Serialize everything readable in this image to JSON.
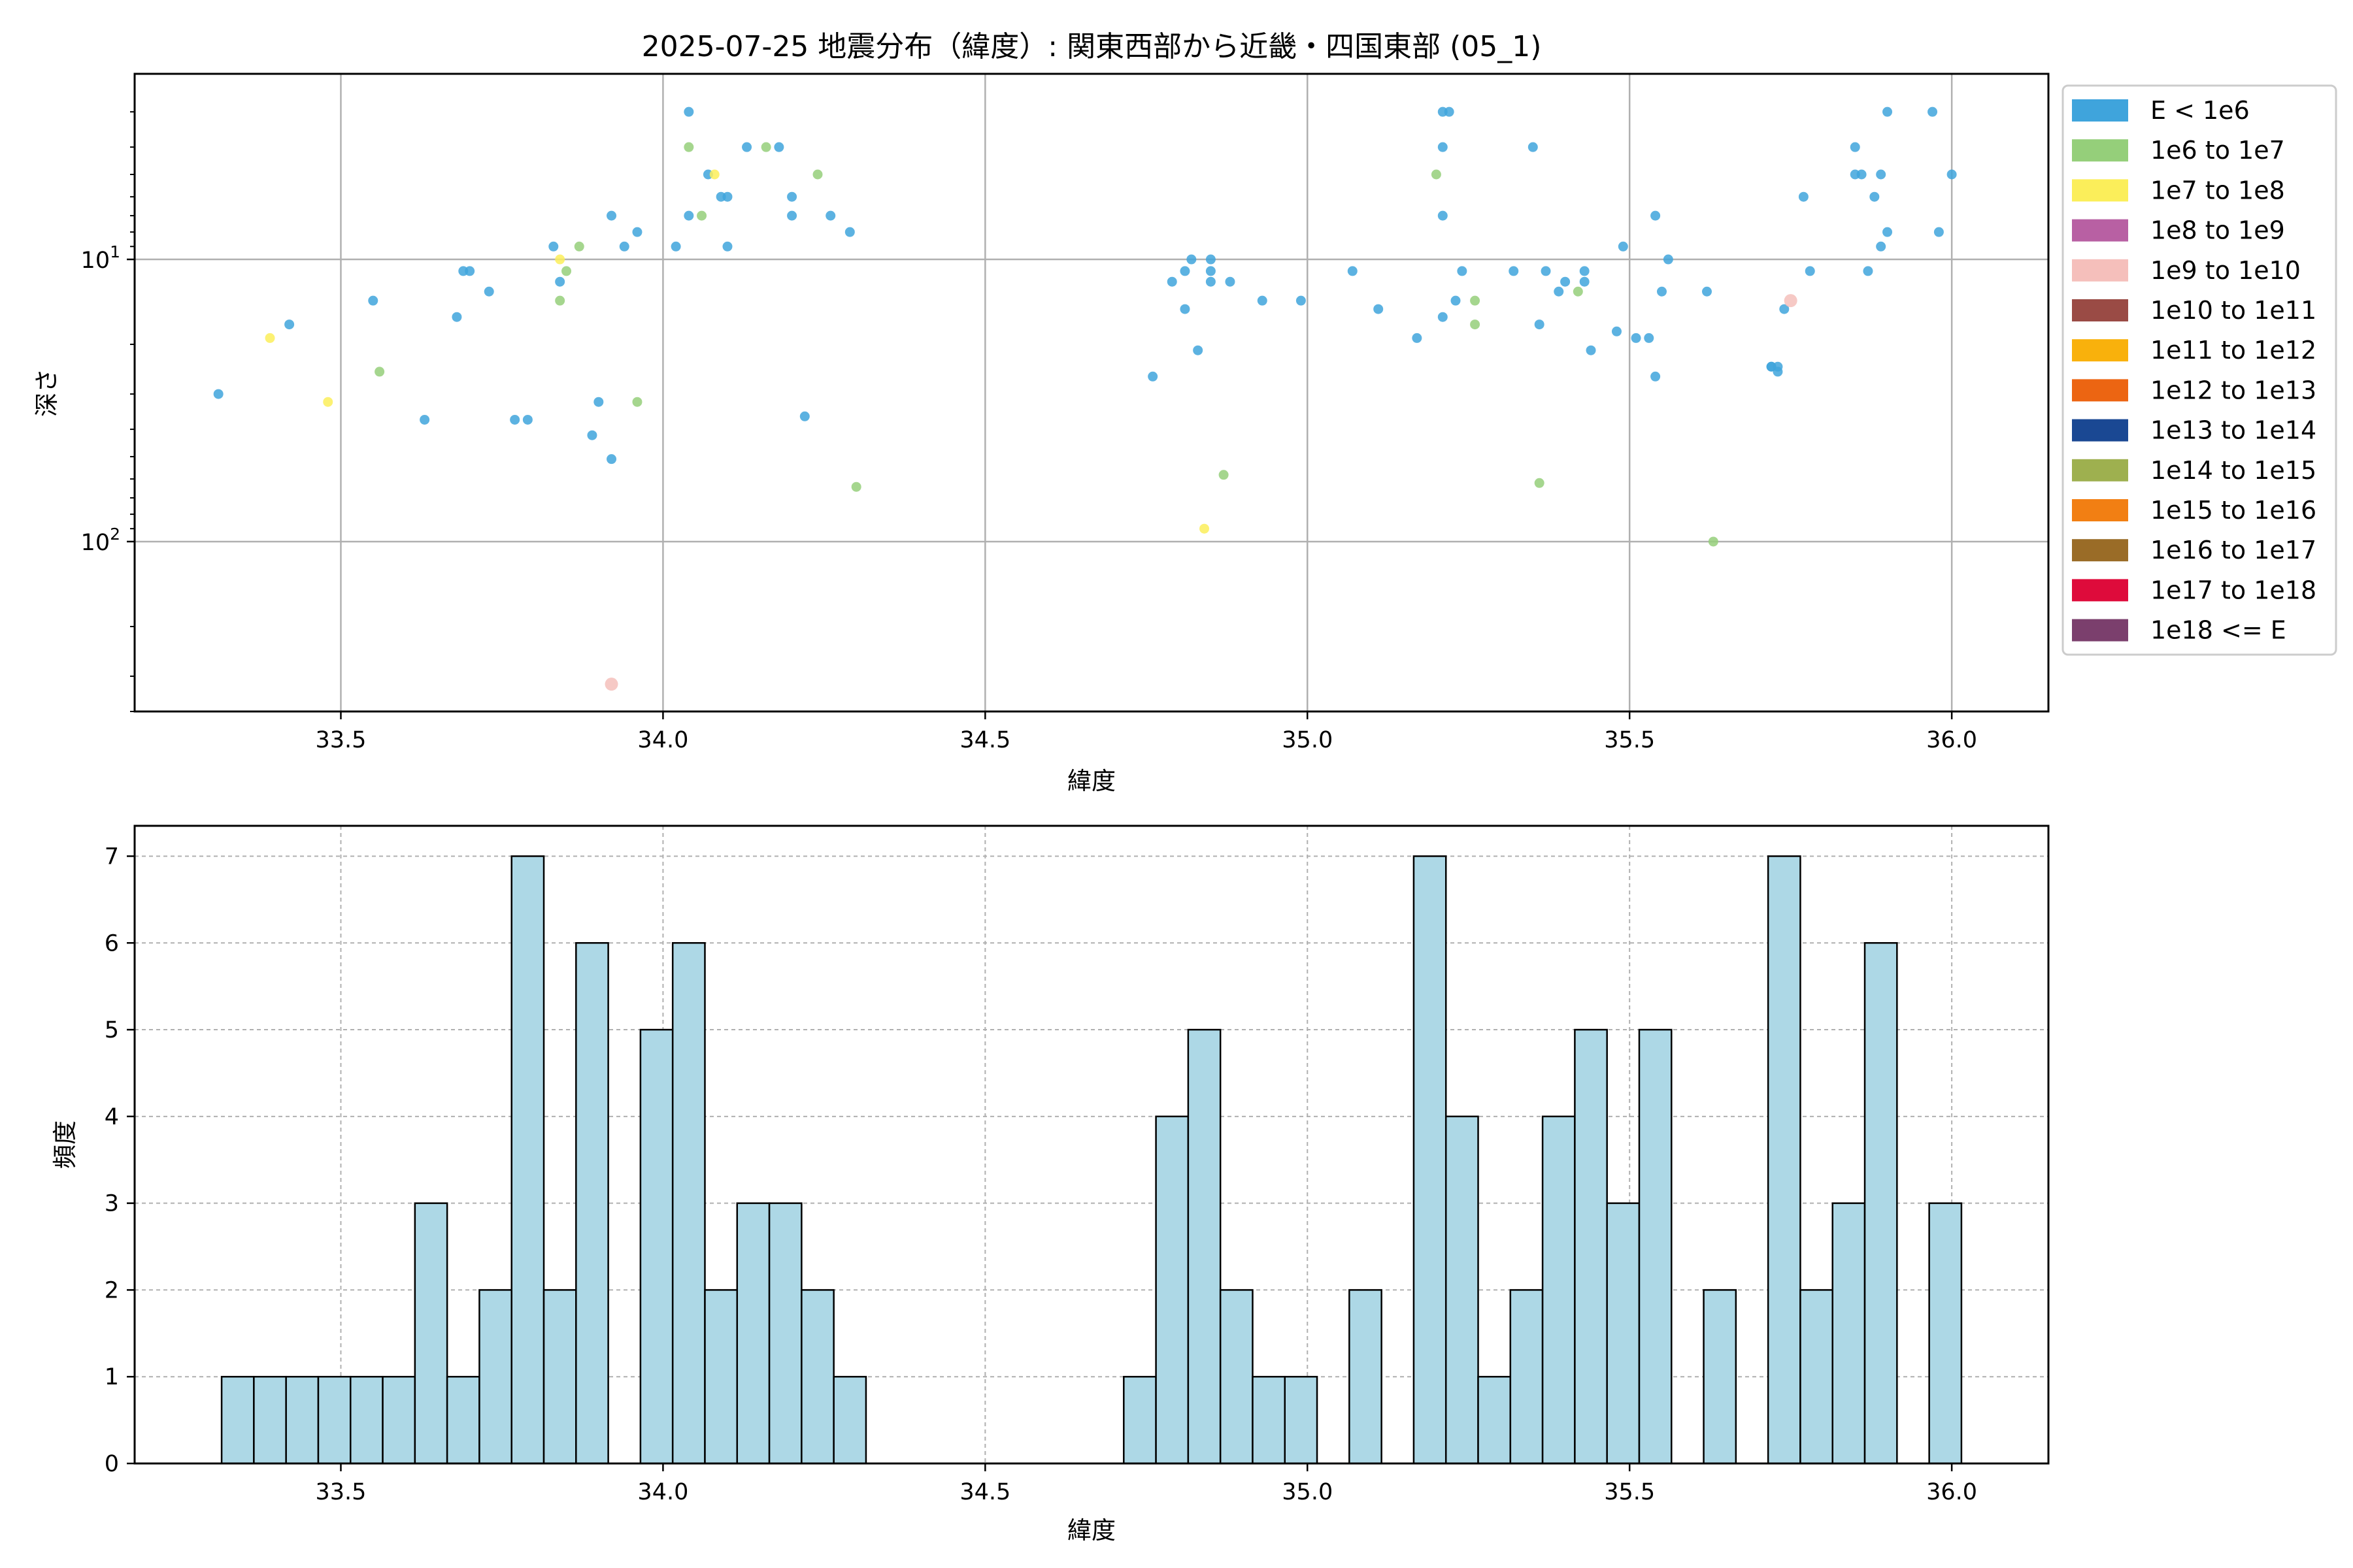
{
  "chart_data": [
    {
      "type": "scatter",
      "title": "2025-07-25 地震分布（緯度）: 関東西部から近畿・四国東部 (05_1)",
      "xlabel": "緯度",
      "ylabel": "深さ",
      "xlim": [
        33.18,
        36.15
      ],
      "ylim": [
        400,
        2.2
      ],
      "y_scale": "log",
      "y_inverted": true,
      "grid": true,
      "x_ticks": [
        {
          "v": 33.5,
          "label": "33.5"
        },
        {
          "v": 34.0,
          "label": "34.0"
        },
        {
          "v": 34.5,
          "label": "34.5"
        },
        {
          "v": 35.0,
          "label": "35.0"
        },
        {
          "v": 35.5,
          "label": "35.5"
        },
        {
          "v": 36.0,
          "label": "36.0"
        }
      ],
      "y_ticks": [
        {
          "v": 10,
          "base": "10",
          "exp": "1"
        },
        {
          "v": 100,
          "base": "10",
          "exp": "2"
        }
      ],
      "legend_position": "outside-right",
      "legend": [
        {
          "label": "E < 1e6",
          "color": "#3fa4dc"
        },
        {
          "label": "1e6 to 1e7",
          "color": "#95cf7a"
        },
        {
          "label": "1e7 to 1e8",
          "color": "#fbee5a"
        },
        {
          "label": "1e8 to 1e9",
          "color": "#b860a3"
        },
        {
          "label": "1e9 to 1e10",
          "color": "#f5bfbb"
        },
        {
          "label": "1e10 to 1e11",
          "color": "#9a4b45"
        },
        {
          "label": "1e11 to 1e12",
          "color": "#f9b10c"
        },
        {
          "label": "1e12 to 1e13",
          "color": "#ec6512"
        },
        {
          "label": "1e13 to 1e14",
          "color": "#1a4893"
        },
        {
          "label": "1e14 to 1e15",
          "color": "#9eb04f"
        },
        {
          "label": "1e15 to 1e16",
          "color": "#f27f13"
        },
        {
          "label": "1e16 to 1e17",
          "color": "#9a6c27"
        },
        {
          "label": "1e17 to 1e18",
          "color": "#de0b3b"
        },
        {
          "label": "1e18 <= E",
          "color": "#7b3f6d"
        }
      ],
      "points": [
        {
          "x": 33.31,
          "y": 30,
          "c": 0
        },
        {
          "x": 33.39,
          "y": 19,
          "c": 2
        },
        {
          "x": 33.42,
          "y": 17,
          "c": 0
        },
        {
          "x": 33.48,
          "y": 32,
          "c": 2
        },
        {
          "x": 33.55,
          "y": 14,
          "c": 0
        },
        {
          "x": 33.56,
          "y": 25,
          "c": 1
        },
        {
          "x": 33.63,
          "y": 37,
          "c": 0
        },
        {
          "x": 33.68,
          "y": 16,
          "c": 0
        },
        {
          "x": 33.69,
          "y": 11,
          "c": 0
        },
        {
          "x": 33.7,
          "y": 11,
          "c": 0
        },
        {
          "x": 33.73,
          "y": 13,
          "c": 0
        },
        {
          "x": 33.77,
          "y": 37,
          "c": 0
        },
        {
          "x": 33.79,
          "y": 37,
          "c": 0
        },
        {
          "x": 33.83,
          "y": 9,
          "c": 0
        },
        {
          "x": 33.84,
          "y": 12,
          "c": 0
        },
        {
          "x": 33.84,
          "y": 14,
          "c": 1
        },
        {
          "x": 33.84,
          "y": 10,
          "c": 2
        },
        {
          "x": 33.85,
          "y": 11,
          "c": 1
        },
        {
          "x": 33.87,
          "y": 9,
          "c": 1
        },
        {
          "x": 33.89,
          "y": 42,
          "c": 0
        },
        {
          "x": 33.9,
          "y": 32,
          "c": 0
        },
        {
          "x": 33.92,
          "y": 51,
          "c": 0
        },
        {
          "x": 33.92,
          "y": 7,
          "c": 0
        },
        {
          "x": 33.94,
          "y": 9,
          "c": 0
        },
        {
          "x": 33.96,
          "y": 8,
          "c": 0
        },
        {
          "x": 33.96,
          "y": 32,
          "c": 1
        },
        {
          "x": 33.92,
          "y": 320,
          "c": 4
        },
        {
          "x": 34.02,
          "y": 9,
          "c": 0
        },
        {
          "x": 34.04,
          "y": 3,
          "c": 0
        },
        {
          "x": 34.04,
          "y": 4,
          "c": 1
        },
        {
          "x": 34.04,
          "y": 7,
          "c": 0
        },
        {
          "x": 34.06,
          "y": 7,
          "c": 1
        },
        {
          "x": 34.07,
          "y": 5,
          "c": 0
        },
        {
          "x": 34.08,
          "y": 5,
          "c": 2
        },
        {
          "x": 34.09,
          "y": 6,
          "c": 0
        },
        {
          "x": 34.1,
          "y": 6,
          "c": 0
        },
        {
          "x": 34.1,
          "y": 9,
          "c": 0
        },
        {
          "x": 34.13,
          "y": 4,
          "c": 0
        },
        {
          "x": 34.16,
          "y": 4,
          "c": 1
        },
        {
          "x": 34.18,
          "y": 4,
          "c": 0
        },
        {
          "x": 34.2,
          "y": 7,
          "c": 0
        },
        {
          "x": 34.2,
          "y": 6,
          "c": 0
        },
        {
          "x": 34.22,
          "y": 36,
          "c": 0
        },
        {
          "x": 34.24,
          "y": 5,
          "c": 1
        },
        {
          "x": 34.26,
          "y": 7,
          "c": 0
        },
        {
          "x": 34.29,
          "y": 8,
          "c": 0
        },
        {
          "x": 34.3,
          "y": 64,
          "c": 1
        },
        {
          "x": 34.76,
          "y": 26,
          "c": 0
        },
        {
          "x": 34.79,
          "y": 12,
          "c": 0
        },
        {
          "x": 34.81,
          "y": 11,
          "c": 0
        },
        {
          "x": 34.81,
          "y": 15,
          "c": 0
        },
        {
          "x": 34.82,
          "y": 10,
          "c": 0
        },
        {
          "x": 34.83,
          "y": 21,
          "c": 0
        },
        {
          "x": 34.85,
          "y": 10,
          "c": 0
        },
        {
          "x": 34.85,
          "y": 11,
          "c": 0
        },
        {
          "x": 34.85,
          "y": 12,
          "c": 0
        },
        {
          "x": 34.87,
          "y": 58,
          "c": 1
        },
        {
          "x": 34.88,
          "y": 12,
          "c": 0
        },
        {
          "x": 34.84,
          "y": 90,
          "c": 2
        },
        {
          "x": 34.93,
          "y": 14,
          "c": 0
        },
        {
          "x": 34.99,
          "y": 14,
          "c": 0
        },
        {
          "x": 35.07,
          "y": 11,
          "c": 0
        },
        {
          "x": 35.11,
          "y": 15,
          "c": 0
        },
        {
          "x": 35.17,
          "y": 19,
          "c": 0
        },
        {
          "x": 35.2,
          "y": 5,
          "c": 1
        },
        {
          "x": 35.21,
          "y": 3,
          "c": 0
        },
        {
          "x": 35.21,
          "y": 4,
          "c": 0
        },
        {
          "x": 35.21,
          "y": 7,
          "c": 0
        },
        {
          "x": 35.21,
          "y": 16,
          "c": 0
        },
        {
          "x": 35.22,
          "y": 3,
          "c": 0
        },
        {
          "x": 35.23,
          "y": 14,
          "c": 0
        },
        {
          "x": 35.24,
          "y": 11,
          "c": 0
        },
        {
          "x": 35.26,
          "y": 14,
          "c": 1
        },
        {
          "x": 35.26,
          "y": 17,
          "c": 1
        },
        {
          "x": 35.32,
          "y": 11,
          "c": 0
        },
        {
          "x": 35.35,
          "y": 4,
          "c": 0
        },
        {
          "x": 35.36,
          "y": 62,
          "c": 1
        },
        {
          "x": 35.36,
          "y": 17,
          "c": 0
        },
        {
          "x": 35.37,
          "y": 11,
          "c": 0
        },
        {
          "x": 35.39,
          "y": 13,
          "c": 0
        },
        {
          "x": 35.4,
          "y": 12,
          "c": 0
        },
        {
          "x": 35.42,
          "y": 13,
          "c": 1
        },
        {
          "x": 35.43,
          "y": 11,
          "c": 0
        },
        {
          "x": 35.43,
          "y": 12,
          "c": 0
        },
        {
          "x": 35.44,
          "y": 21,
          "c": 0
        },
        {
          "x": 35.48,
          "y": 18,
          "c": 0
        },
        {
          "x": 35.49,
          "y": 9,
          "c": 0
        },
        {
          "x": 35.51,
          "y": 19,
          "c": 0
        },
        {
          "x": 35.53,
          "y": 19,
          "c": 0
        },
        {
          "x": 35.54,
          "y": 7,
          "c": 0
        },
        {
          "x": 35.54,
          "y": 26,
          "c": 0
        },
        {
          "x": 35.55,
          "y": 13,
          "c": 0
        },
        {
          "x": 35.56,
          "y": 10,
          "c": 0
        },
        {
          "x": 35.62,
          "y": 13,
          "c": 0
        },
        {
          "x": 35.63,
          "y": 100,
          "c": 1
        },
        {
          "x": 35.72,
          "y": 24,
          "c": 0
        },
        {
          "x": 35.72,
          "y": 24,
          "c": 0
        },
        {
          "x": 35.73,
          "y": 25,
          "c": 0
        },
        {
          "x": 35.73,
          "y": 24,
          "c": 0
        },
        {
          "x": 35.74,
          "y": 15,
          "c": 0
        },
        {
          "x": 35.75,
          "y": 14,
          "c": 4
        },
        {
          "x": 35.77,
          "y": 6,
          "c": 0
        },
        {
          "x": 35.78,
          "y": 11,
          "c": 0
        },
        {
          "x": 35.85,
          "y": 4,
          "c": 0
        },
        {
          "x": 35.85,
          "y": 5,
          "c": 0
        },
        {
          "x": 35.86,
          "y": 5,
          "c": 0
        },
        {
          "x": 35.87,
          "y": 11,
          "c": 0
        },
        {
          "x": 35.88,
          "y": 6,
          "c": 0
        },
        {
          "x": 35.89,
          "y": 9,
          "c": 0
        },
        {
          "x": 35.89,
          "y": 5,
          "c": 0
        },
        {
          "x": 35.9,
          "y": 8,
          "c": 0
        },
        {
          "x": 35.9,
          "y": 3,
          "c": 0
        },
        {
          "x": 35.97,
          "y": 3,
          "c": 0
        },
        {
          "x": 35.98,
          "y": 8,
          "c": 0
        },
        {
          "x": 36.0,
          "y": 5,
          "c": 0
        }
      ]
    },
    {
      "type": "bar",
      "title": "",
      "xlabel": "緯度",
      "ylabel": "頻度",
      "xlim": [
        33.18,
        36.15
      ],
      "ylim": [
        0,
        7.35
      ],
      "grid": true,
      "bar_color": "#add8e6",
      "x_ticks": [
        {
          "v": 33.5,
          "label": "33.5"
        },
        {
          "v": 34.0,
          "label": "34.0"
        },
        {
          "v": 34.5,
          "label": "34.5"
        },
        {
          "v": 35.0,
          "label": "35.0"
        },
        {
          "v": 35.5,
          "label": "35.5"
        },
        {
          "v": 36.0,
          "label": "36.0"
        }
      ],
      "y_ticks": [
        {
          "v": 0,
          "label": "0"
        },
        {
          "v": 1,
          "label": "1"
        },
        {
          "v": 2,
          "label": "2"
        },
        {
          "v": 3,
          "label": "3"
        },
        {
          "v": 4,
          "label": "4"
        },
        {
          "v": 5,
          "label": "5"
        },
        {
          "v": 6,
          "label": "6"
        },
        {
          "v": 7,
          "label": "7"
        }
      ],
      "bin_start": 33.315,
      "bin_width": 0.05,
      "values": [
        1,
        1,
        1,
        1,
        1,
        1,
        3,
        1,
        2,
        7,
        2,
        6,
        0,
        5,
        6,
        2,
        3,
        3,
        2,
        1,
        0,
        0,
        0,
        0,
        0,
        0,
        0,
        0,
        1,
        4,
        5,
        2,
        1,
        1,
        0,
        2,
        0,
        7,
        4,
        1,
        2,
        4,
        5,
        3,
        5,
        0,
        2,
        0,
        7,
        2,
        3,
        6,
        0,
        3
      ]
    }
  ]
}
